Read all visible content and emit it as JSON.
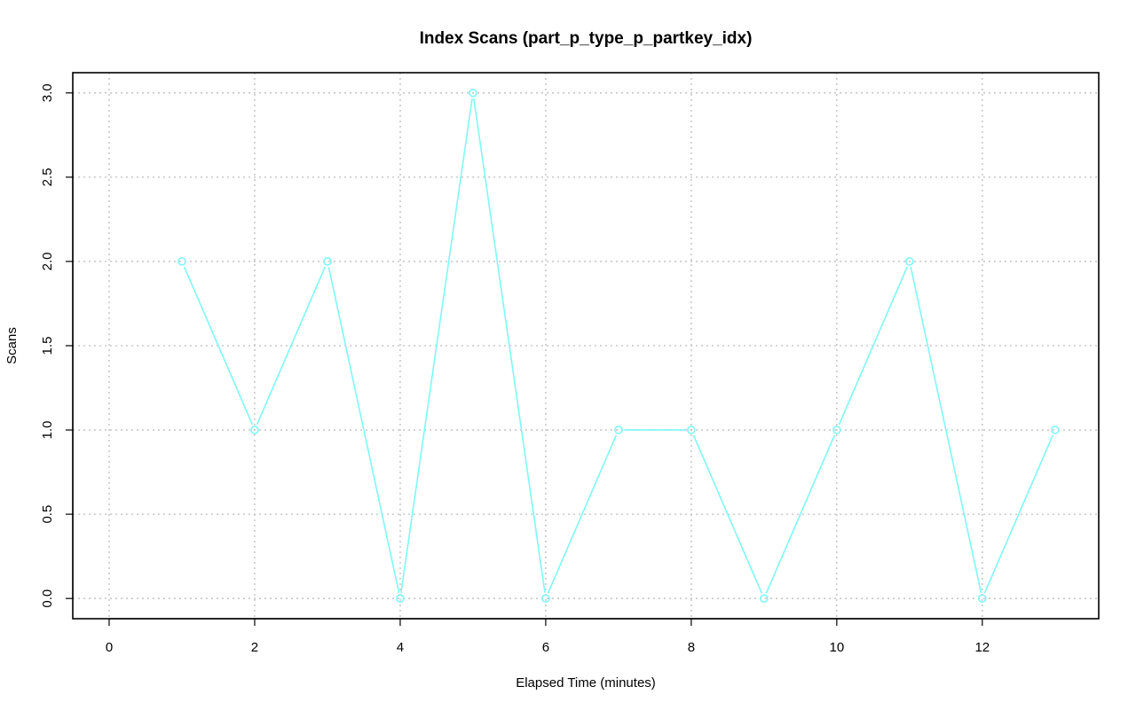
{
  "chart_data": {
    "type": "line",
    "title": "Index Scans (part_p_type_p_partkey_idx)",
    "xlabel": "Elapsed Time (minutes)",
    "ylabel": "Scans",
    "x": [
      1,
      2,
      3,
      4,
      5,
      6,
      7,
      8,
      9,
      10,
      11,
      12,
      13
    ],
    "y": [
      2,
      1,
      2,
      0,
      3,
      0,
      1,
      1,
      0,
      1,
      2,
      0,
      1
    ],
    "xlim": [
      -0.5,
      13.6
    ],
    "ylim": [
      -0.12,
      3.12
    ],
    "x_ticks": [
      0,
      2,
      4,
      6,
      8,
      10,
      12
    ],
    "x_tick_labels": [
      "0",
      "2",
      "4",
      "6",
      "8",
      "10",
      "12"
    ],
    "y_ticks": [
      0,
      0.5,
      1,
      1.5,
      2,
      2.5,
      3
    ],
    "y_tick_labels": [
      "0.0",
      "0.5",
      "1.0",
      "1.5",
      "2.0",
      "2.5",
      "3.0"
    ],
    "x_grid": [
      0,
      2,
      4,
      6,
      8,
      10,
      12
    ],
    "grid": true,
    "series_color": "#7ff7f7",
    "marker": "open-circle"
  }
}
